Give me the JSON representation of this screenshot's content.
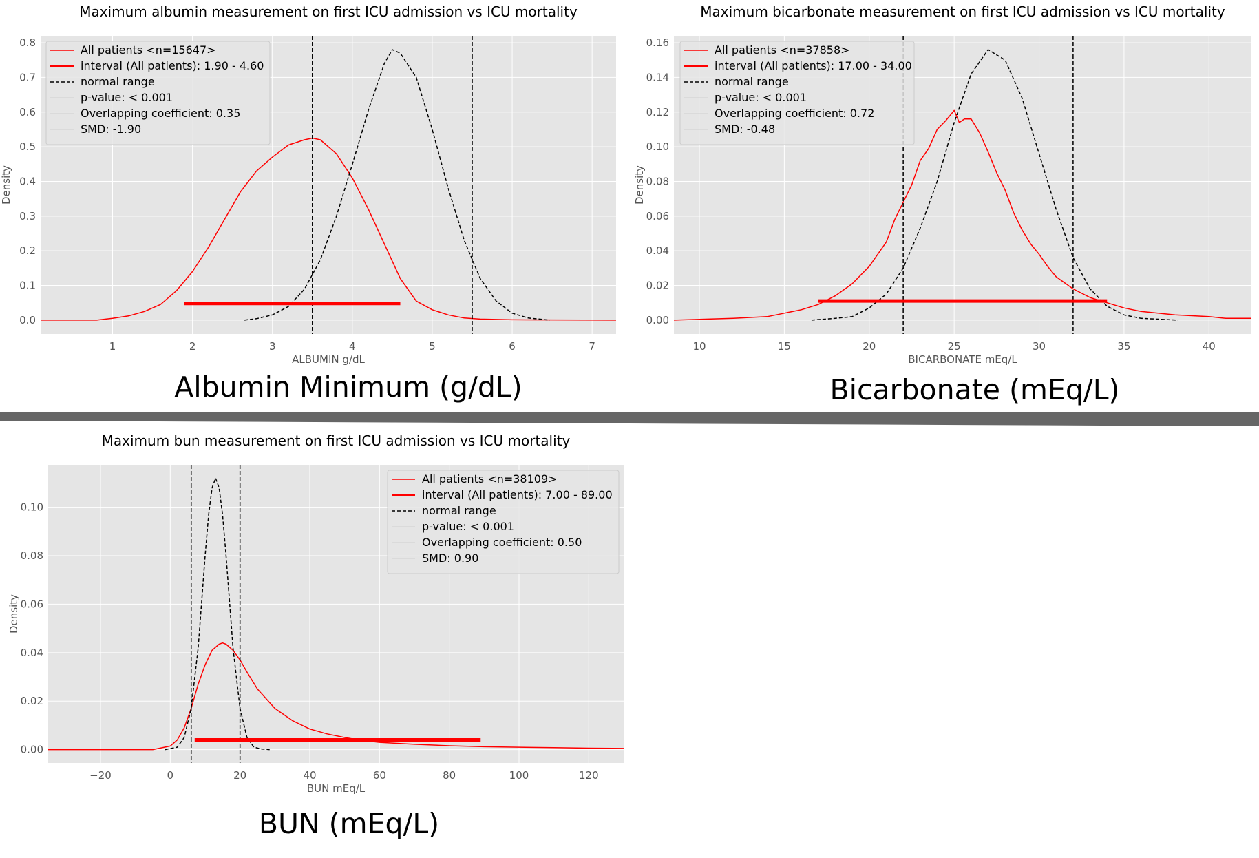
{
  "separator_color": "#666666",
  "colors": {
    "kde": "#ff0000",
    "interval": "#ff0000",
    "normal": "#000000",
    "plot_bg": "#e5e5e5",
    "grid": "#ffffff",
    "tick_text": "#555555"
  },
  "captions": {
    "albumin": "Albumin Minimum (g/dL)",
    "bicarbonate": "Bicarbonate (mEq/L)",
    "bun": "BUN (mEq/L)"
  },
  "chart_data": [
    {
      "id": "albumin",
      "type": "line",
      "title": "Maximum albumin measurement on first ICU admission vs ICU mortality",
      "xlabel": "ALBUMIN g/dL",
      "ylabel": "Density",
      "xlim": [
        0.1,
        7.3
      ],
      "ylim": [
        -0.04,
        0.82
      ],
      "xticks": [
        1,
        2,
        3,
        4,
        5,
        6,
        7
      ],
      "xtick_labels": [
        "1",
        "2",
        "3",
        "4",
        "5",
        "6",
        "7"
      ],
      "yticks": [
        0.0,
        0.1,
        0.2,
        0.3,
        0.4,
        0.5,
        0.6,
        0.7,
        0.8
      ],
      "ytick_labels": [
        "0.0",
        "0.1",
        "0.2",
        "0.3",
        "0.4",
        "0.5",
        "0.6",
        "0.7",
        "0.8"
      ],
      "grid": true,
      "legend": {
        "position": "top-left",
        "entries": [
          {
            "label": "All patients <n=15647>",
            "style": "thin-red"
          },
          {
            "label": "interval (All patients): 1.90 - 4.60",
            "style": "thick-red"
          },
          {
            "label": "normal range",
            "style": "dashed-black"
          },
          {
            "label": "p-value: < 0.001",
            "style": "faint"
          },
          {
            "label": "Overlapping coefficient: 0.35",
            "style": "faint"
          },
          {
            "label": "SMD: -1.90",
            "style": "faint"
          }
        ]
      },
      "series": [
        {
          "name": "All patients",
          "style": "kde",
          "x": [
            0.1,
            0.8,
            1.0,
            1.2,
            1.4,
            1.6,
            1.8,
            2.0,
            2.2,
            2.4,
            2.6,
            2.8,
            3.0,
            3.2,
            3.4,
            3.5,
            3.6,
            3.8,
            4.0,
            4.2,
            4.4,
            4.6,
            4.8,
            5.0,
            5.2,
            5.4,
            5.6,
            6.0,
            7.3
          ],
          "y": [
            0.0,
            0.0,
            0.005,
            0.012,
            0.025,
            0.045,
            0.085,
            0.14,
            0.21,
            0.29,
            0.37,
            0.43,
            0.47,
            0.505,
            0.52,
            0.525,
            0.52,
            0.48,
            0.41,
            0.32,
            0.22,
            0.12,
            0.055,
            0.03,
            0.015,
            0.006,
            0.003,
            0.001,
            0.0
          ]
        },
        {
          "name": "normal range",
          "style": "normal",
          "x": [
            2.65,
            2.8,
            3.0,
            3.2,
            3.4,
            3.6,
            3.8,
            4.0,
            4.2,
            4.4,
            4.5,
            4.6,
            4.8,
            5.0,
            5.2,
            5.4,
            5.6,
            5.8,
            6.0,
            6.2,
            6.47
          ],
          "y": [
            0.0,
            0.004,
            0.015,
            0.039,
            0.089,
            0.174,
            0.299,
            0.449,
            0.605,
            0.74,
            0.78,
            0.77,
            0.7,
            0.55,
            0.38,
            0.23,
            0.12,
            0.055,
            0.02,
            0.006,
            0.0
          ]
        }
      ],
      "interval": {
        "x0": 1.9,
        "x1": 4.6,
        "y": 0.048
      },
      "normal_range_lines": [
        3.5,
        5.5
      ]
    },
    {
      "id": "bicarbonate",
      "type": "line",
      "title": "Maximum bicarbonate measurement on first ICU admission vs ICU mortality",
      "xlabel": "BICARBONATE mEq/L",
      "ylabel": "Density",
      "xlim": [
        8.5,
        42.5
      ],
      "ylim": [
        -0.008,
        0.164
      ],
      "xticks": [
        10,
        15,
        20,
        25,
        30,
        35,
        40
      ],
      "xtick_labels": [
        "10",
        "15",
        "20",
        "25",
        "30",
        "35",
        "40"
      ],
      "yticks": [
        0.0,
        0.02,
        0.04,
        0.06,
        0.08,
        0.1,
        0.12,
        0.14,
        0.16
      ],
      "ytick_labels": [
        "0.00",
        "0.02",
        "0.04",
        "0.06",
        "0.08",
        "0.10",
        "0.12",
        "0.14",
        "0.16"
      ],
      "grid": true,
      "legend": {
        "position": "top-left",
        "entries": [
          {
            "label": "All patients <n=37858>",
            "style": "thin-red"
          },
          {
            "label": "interval (All patients): 17.00 - 34.00",
            "style": "thick-red"
          },
          {
            "label": "normal range",
            "style": "dashed-black"
          },
          {
            "label": "p-value: < 0.001",
            "style": "faint"
          },
          {
            "label": "Overlapping coefficient: 0.72",
            "style": "faint"
          },
          {
            "label": "SMD: -0.48",
            "style": "faint"
          }
        ]
      },
      "series": [
        {
          "name": "All patients",
          "style": "kde",
          "x": [
            8.5,
            12,
            14,
            15,
            16,
            17,
            18,
            19,
            20,
            21,
            21.5,
            22,
            22.5,
            23,
            23.5,
            24,
            24.5,
            25,
            25.3,
            25.6,
            26,
            26.5,
            27,
            27.5,
            28,
            28.5,
            29,
            29.5,
            30,
            30.5,
            31,
            32,
            33,
            34,
            35,
            36,
            38,
            40,
            41,
            42.5
          ],
          "y": [
            0.0,
            0.001,
            0.002,
            0.004,
            0.006,
            0.009,
            0.014,
            0.021,
            0.031,
            0.045,
            0.058,
            0.068,
            0.078,
            0.092,
            0.099,
            0.11,
            0.115,
            0.121,
            0.114,
            0.116,
            0.116,
            0.108,
            0.097,
            0.085,
            0.075,
            0.062,
            0.052,
            0.044,
            0.038,
            0.031,
            0.025,
            0.018,
            0.013,
            0.01,
            0.007,
            0.005,
            0.003,
            0.002,
            0.001,
            0.001
          ]
        },
        {
          "name": "normal range",
          "style": "normal",
          "x": [
            16.6,
            18,
            19,
            20,
            21,
            22,
            23,
            24,
            25,
            26,
            27,
            28,
            29,
            30,
            31,
            32,
            33,
            34,
            35,
            36,
            38.2
          ],
          "y": [
            0.0,
            0.001,
            0.002,
            0.007,
            0.015,
            0.03,
            0.053,
            0.08,
            0.114,
            0.142,
            0.156,
            0.15,
            0.128,
            0.096,
            0.064,
            0.036,
            0.018,
            0.008,
            0.003,
            0.001,
            0.0
          ]
        }
      ],
      "interval": {
        "x0": 17.0,
        "x1": 34.0,
        "y": 0.011
      },
      "normal_range_lines": [
        22,
        32
      ]
    },
    {
      "id": "bun",
      "type": "line",
      "title": "Maximum bun measurement on first ICU admission vs ICU mortality",
      "xlabel": "BUN mEq/L",
      "ylabel": "Density",
      "xlim": [
        -35,
        130
      ],
      "ylim": [
        -0.0055,
        0.1175
      ],
      "xticks": [
        -20,
        0,
        20,
        40,
        60,
        80,
        100,
        120
      ],
      "xtick_labels": [
        "−20",
        "0",
        "20",
        "40",
        "60",
        "80",
        "100",
        "120"
      ],
      "yticks": [
        0.0,
        0.02,
        0.04,
        0.06,
        0.08,
        0.1
      ],
      "ytick_labels": [
        "0.00",
        "0.02",
        "0.04",
        "0.06",
        "0.08",
        "0.10"
      ],
      "grid": true,
      "legend": {
        "position": "top-right",
        "entries": [
          {
            "label": "All patients <n=38109>",
            "style": "thin-red"
          },
          {
            "label": "interval (All patients): 7.00 - 89.00",
            "style": "thick-red"
          },
          {
            "label": "normal range",
            "style": "dashed-black"
          },
          {
            "label": "p-value: < 0.001",
            "style": "faint"
          },
          {
            "label": "Overlapping coefficient: 0.50",
            "style": "faint"
          },
          {
            "label": "SMD: 0.90",
            "style": "faint"
          }
        ]
      },
      "series": [
        {
          "name": "All patients",
          "style": "kde",
          "x": [
            -35,
            -5,
            0,
            2,
            4,
            6,
            8,
            10,
            12,
            14,
            15,
            16,
            18,
            20,
            22,
            25,
            30,
            35,
            40,
            45,
            50,
            55,
            60,
            70,
            80,
            90,
            100,
            110,
            120,
            130
          ],
          "y": [
            0.0,
            0.0,
            0.0015,
            0.004,
            0.009,
            0.017,
            0.027,
            0.035,
            0.041,
            0.0435,
            0.044,
            0.0435,
            0.041,
            0.037,
            0.032,
            0.025,
            0.017,
            0.012,
            0.0085,
            0.0065,
            0.005,
            0.0038,
            0.003,
            0.0022,
            0.0016,
            0.0012,
            0.001,
            0.0008,
            0.0006,
            0.0005
          ]
        },
        {
          "name": "normal range",
          "style": "normal",
          "x": [
            -1.5,
            2,
            4,
            6,
            8,
            10,
            11,
            12,
            13,
            14,
            15,
            16,
            18,
            20,
            22,
            24,
            26,
            28.5
          ],
          "y": [
            0.0,
            0.001,
            0.005,
            0.017,
            0.042,
            0.08,
            0.097,
            0.108,
            0.112,
            0.108,
            0.097,
            0.08,
            0.042,
            0.017,
            0.005,
            0.001,
            0.0003,
            0.0
          ]
        }
      ],
      "interval": {
        "x0": 7.0,
        "x1": 89.0,
        "y": 0.004
      },
      "normal_range_lines": [
        6,
        20
      ]
    }
  ]
}
